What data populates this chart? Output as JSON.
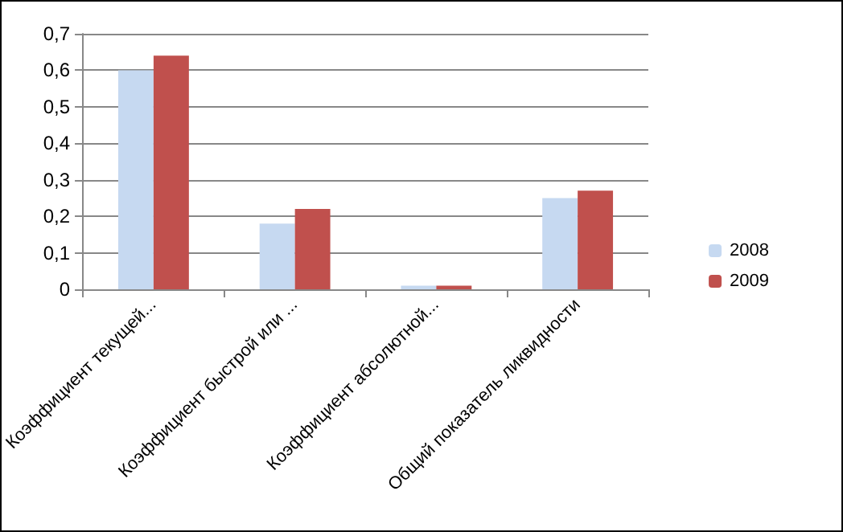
{
  "chart_data": {
    "type": "bar",
    "categories": [
      "Коэффициент текущей...",
      "Коэффициент быстрой или ...",
      "Коэффициент абсолютной...",
      "Общий показатель ликвидности"
    ],
    "series": [
      {
        "name": "2008",
        "color": "#c6d9f1",
        "values": [
          0.6,
          0.18,
          0.01,
          0.25
        ]
      },
      {
        "name": "2009",
        "color": "#c0504d",
        "values": [
          0.64,
          0.22,
          0.01,
          0.27
        ]
      }
    ],
    "ylim": [
      0,
      0.7
    ],
    "yticks": [
      0,
      {
        "value": 0.1,
        "label": "0,1"
      },
      {
        "value": 0.2,
        "label": "0,2"
      },
      {
        "value": 0.3,
        "label": "0,3"
      },
      {
        "value": 0.4,
        "label": "0,4"
      },
      {
        "value": 0.5,
        "label": "0,5"
      },
      {
        "value": 0.6,
        "label": "0,6"
      },
      {
        "value": 0.7,
        "label": "0,7"
      }
    ],
    "grid": "y",
    "legend": "right"
  }
}
